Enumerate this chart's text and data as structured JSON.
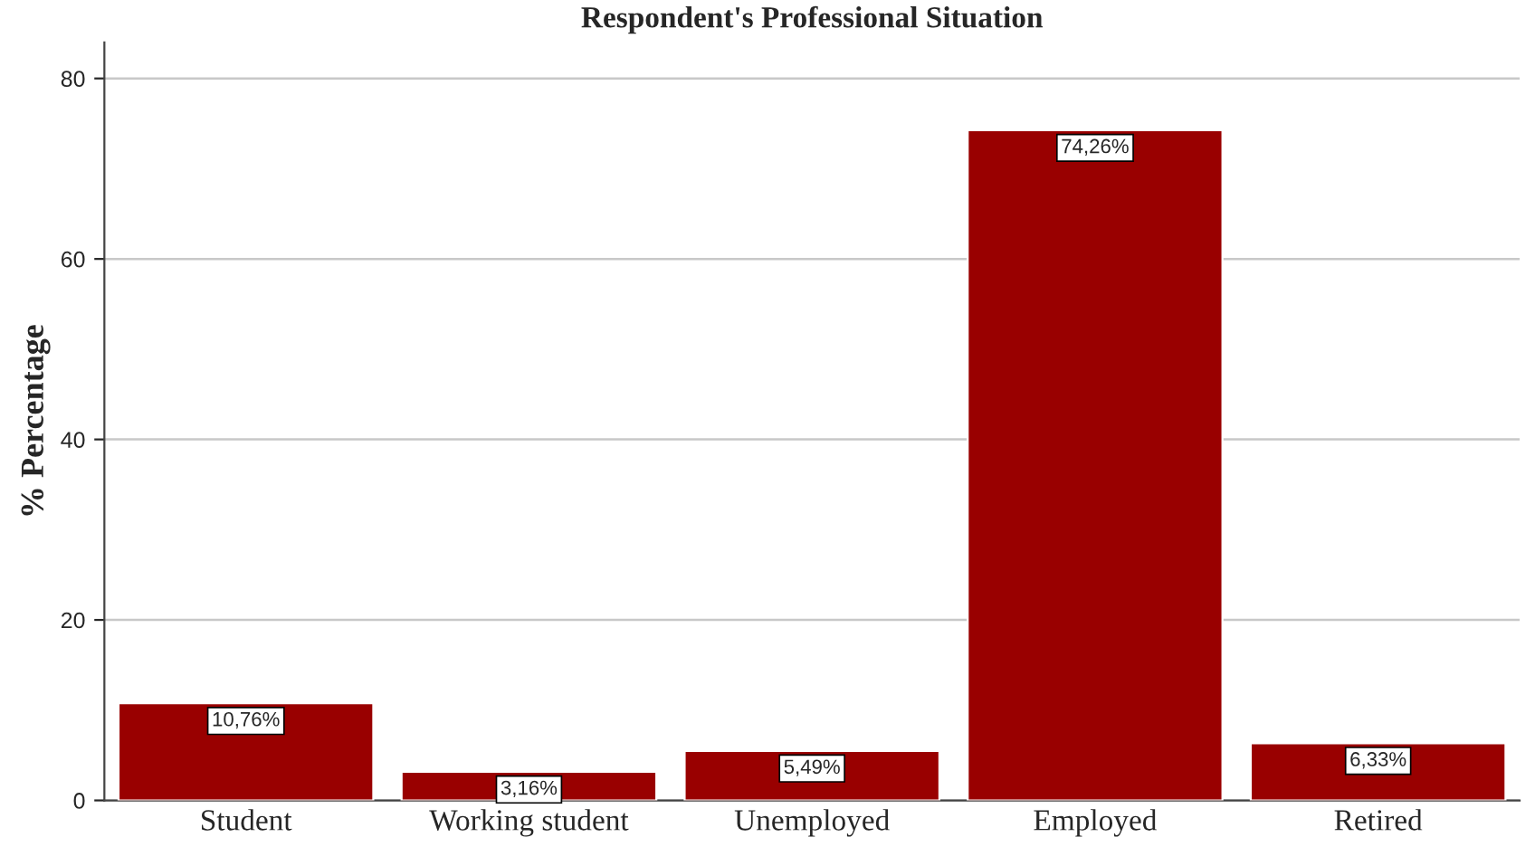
{
  "chart_data": {
    "type": "bar",
    "title": "Respondent's Professional Situation",
    "ylabel": "% Percentage",
    "categories": [
      "Student",
      "Working student",
      "Unemployed",
      "Employed",
      "Retired"
    ],
    "values": [
      10.76,
      3.16,
      5.49,
      74.26,
      6.33
    ],
    "value_labels": [
      "10,76%",
      "3,16%",
      "5,49%",
      "74,26%",
      "6,33%"
    ],
    "color": "#990000",
    "ylim": [
      0,
      84
    ],
    "yticks": [
      0,
      20,
      40,
      60,
      80
    ],
    "grid": "y",
    "legend": false
  }
}
